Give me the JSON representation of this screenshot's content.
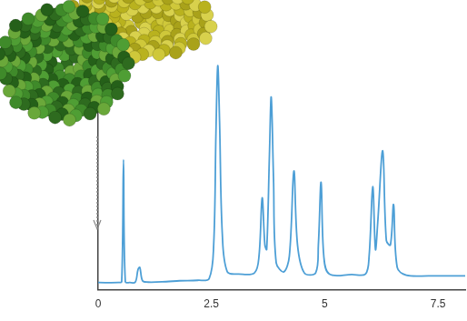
{
  "chart_data": {
    "type": "line",
    "x": [
      0,
      0.45,
      0.52,
      0.56,
      0.6,
      0.7,
      0.82,
      0.88,
      0.92,
      0.98,
      1.1,
      1.5,
      1.8,
      2.2,
      2.45,
      2.55,
      2.6,
      2.64,
      2.68,
      2.74,
      2.85,
      3.1,
      3.45,
      3.55,
      3.62,
      3.68,
      3.72,
      3.78,
      3.82,
      3.87,
      3.93,
      4.1,
      4.22,
      4.32,
      4.4,
      4.55,
      4.8,
      4.86,
      4.92,
      4.98,
      5.1,
      5.6,
      5.9,
      5.98,
      6.06,
      6.12,
      6.17,
      6.28,
      6.36,
      6.45,
      6.52,
      6.6,
      6.8,
      7.3,
      8.1
    ],
    "values": [
      3.2,
      3.2,
      3.6,
      58,
      3.6,
      3.2,
      3.4,
      9,
      10,
      4,
      3.4,
      3.6,
      4,
      4.2,
      5,
      20,
      70,
      100,
      75,
      25,
      8,
      7,
      7.5,
      15,
      41,
      20,
      18,
      60,
      86,
      50,
      12,
      8,
      15,
      53,
      20,
      7.5,
      7.5,
      20,
      48,
      15,
      7,
      6.8,
      7,
      15,
      46,
      18,
      30,
      62,
      22,
      20,
      38,
      10,
      6.5,
      6.2,
      6.2
    ],
    "color": "#4d9fd6",
    "xlim": [
      0,
      8.1
    ],
    "xticks": [
      0,
      2.5,
      5,
      7.5
    ],
    "ylim": [
      0,
      105
    ],
    "tick_labels": "x",
    "grid": false
  }
}
